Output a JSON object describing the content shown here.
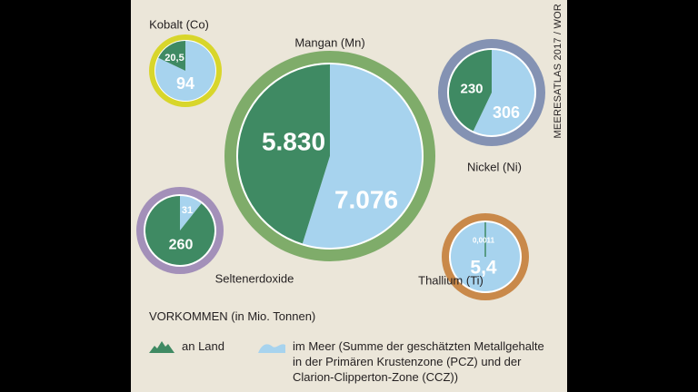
{
  "colors": {
    "background": "#ebe6d9",
    "land": "#3f8a63",
    "sea": "#a7d3ee",
    "text": "#231f20"
  },
  "source": "MEERESATLAS 2017 / WOR",
  "chart_data": {
    "type": "pie",
    "unit": "Mio. Tonnen",
    "series": [
      {
        "name": "an Land"
      },
      {
        "name": "im Meer"
      }
    ],
    "pies": [
      {
        "name": "Mangan (Mn)",
        "land": 5830,
        "sea": 7076,
        "land_label": "5.830",
        "sea_label": "7.076",
        "ring_color": "#7fac6a"
      },
      {
        "name": "Kobalt (Co)",
        "land": 20.5,
        "sea": 94,
        "land_label": "20,5",
        "sea_label": "94",
        "ring_color": "#d8d62b"
      },
      {
        "name": "Nickel (Ni)",
        "land": 230,
        "sea": 306,
        "land_label": "230",
        "sea_label": "306",
        "ring_color": "#8492b3"
      },
      {
        "name": "Seltenerdoxide",
        "land": 260,
        "sea": 31,
        "land_label": "260",
        "sea_label": "31",
        "ring_color": "#a390b9"
      },
      {
        "name": "Thallium (Ti)",
        "land": 0.0011,
        "sea": 5.4,
        "land_label": "0,0011",
        "sea_label": "5,4",
        "ring_color": "#c9894a"
      }
    ]
  },
  "legend": {
    "title": "VORKOMMEN (in Mio. Tonnen)",
    "land_label": "an Land",
    "sea_lines": [
      "im Meer (Summe der geschätzten Metallgehalte",
      "in der Primären Krustenzone (PCZ) und der",
      "Clarion-Clipperton-Zone (CCZ))"
    ]
  }
}
